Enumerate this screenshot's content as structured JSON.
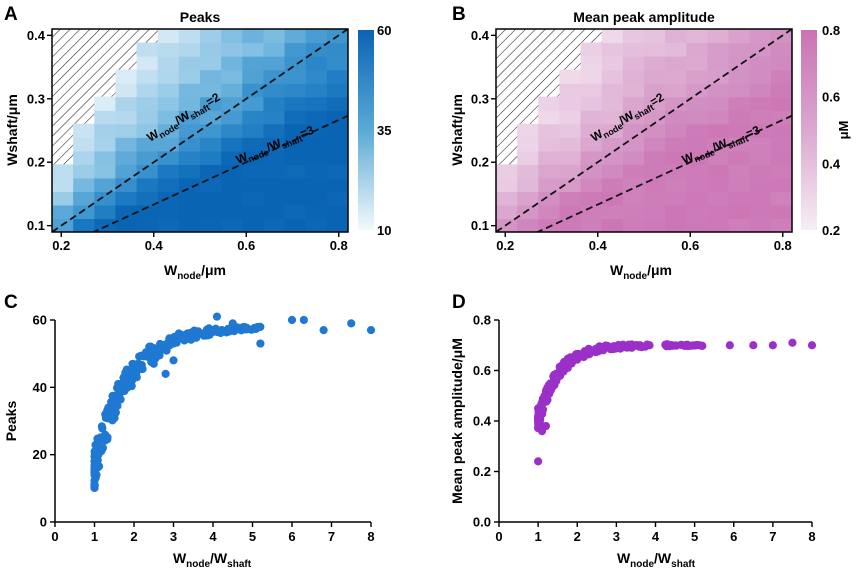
{
  "figure": {
    "panel_letters": [
      "A",
      "B",
      "C",
      "D"
    ]
  },
  "chart_data": [
    {
      "panel": "A",
      "type": "heatmap",
      "title": "Peaks",
      "xlabel_main": "W",
      "xlabel_sub": "node",
      "xlabel_tail": "/μm",
      "ylabel": "Wshaft/μm",
      "xlim": [
        0.18,
        0.82
      ],
      "ylim": [
        0.09,
        0.41
      ],
      "x_ticks": [
        0.2,
        0.4,
        0.6,
        0.8
      ],
      "x_tick_labels": [
        "0.2",
        "0.4",
        "0.6",
        "0.8"
      ],
      "y_ticks": [
        0.1,
        0.2,
        0.3,
        0.4
      ],
      "y_tick_labels": [
        "0.1",
        "0.2",
        "0.3",
        "0.4"
      ],
      "hatched_region": "upper-left (not computed where Wnode < Wshaft)",
      "colorbar": {
        "min": 10,
        "max": 60,
        "ticks": [
          10,
          35,
          60
        ],
        "tick_labels": [
          "10",
          "35",
          "60"
        ],
        "low_color": "#f3f9fc",
        "high_color": "#0a64b4",
        "unit": ""
      },
      "reference_lines": [
        {
          "ratio": 2,
          "label_main": "W",
          "label_sub1": "node",
          "label_mid": "/W",
          "label_sub2": "shaft",
          "label_tail": "=2"
        },
        {
          "ratio": 3,
          "label_main": "W",
          "label_sub1": "node",
          "label_mid": "/W",
          "label_sub2": "shaft",
          "label_tail": "=3"
        }
      ]
    },
    {
      "panel": "B",
      "type": "heatmap",
      "title": "Mean peak amplitude",
      "xlabel_main": "W",
      "xlabel_sub": "node",
      "xlabel_tail": "/μm",
      "ylabel": "Wshaft/μm",
      "xlim": [
        0.18,
        0.82
      ],
      "ylim": [
        0.09,
        0.41
      ],
      "x_ticks": [
        0.2,
        0.4,
        0.6,
        0.8
      ],
      "x_tick_labels": [
        "0.2",
        "0.4",
        "0.6",
        "0.8"
      ],
      "y_ticks": [
        0.1,
        0.2,
        0.3,
        0.4
      ],
      "y_tick_labels": [
        "0.1",
        "0.2",
        "0.3",
        "0.4"
      ],
      "hatched_region": "upper-left (not computed where Wnode < Wshaft)",
      "colorbar": {
        "min": 0.2,
        "max": 0.8,
        "ticks": [
          0.2,
          0.4,
          0.6,
          0.8
        ],
        "tick_labels": [
          "0.2",
          "0.4",
          "0.6",
          "0.8"
        ],
        "low_color": "#f7eef5",
        "high_color": "#cc72b4",
        "unit": "μM"
      },
      "reference_lines": [
        {
          "ratio": 2,
          "label_main": "W",
          "label_sub1": "node",
          "label_mid": "/W",
          "label_sub2": "shaft",
          "label_tail": "=2"
        },
        {
          "ratio": 3,
          "label_main": "W",
          "label_sub1": "node",
          "label_mid": "/W",
          "label_sub2": "shaft",
          "label_tail": "=3"
        }
      ]
    },
    {
      "panel": "C",
      "type": "scatter",
      "title": "",
      "xlabel_main": "W",
      "xlabel_sub1": "node",
      "xlabel_mid": "/W",
      "xlabel_sub2": "shaft",
      "ylabel": "Peaks",
      "xlim": [
        0,
        8
      ],
      "ylim": [
        0,
        60
      ],
      "x_ticks": [
        0,
        1,
        2,
        3,
        4,
        5,
        6,
        7,
        8
      ],
      "x_tick_labels": [
        "0",
        "1",
        "2",
        "3",
        "4",
        "5",
        "6",
        "7",
        "8"
      ],
      "y_ticks": [
        0,
        20,
        40,
        60
      ],
      "y_tick_labels": [
        "0",
        "20",
        "40",
        "60"
      ],
      "color": "#1f78d1",
      "model": {
        "ymax": 58,
        "ymin": 16,
        "k": 1.15,
        "noise": 6
      },
      "outliers": [
        [
          1.0,
          16
        ],
        [
          1.05,
          17
        ],
        [
          1.1,
          20
        ],
        [
          2.8,
          44
        ],
        [
          2.5,
          47
        ],
        [
          3.0,
          48
        ],
        [
          4.1,
          61
        ],
        [
          5.2,
          53
        ],
        [
          6.0,
          60
        ],
        [
          6.3,
          60
        ],
        [
          7.5,
          59
        ],
        [
          8.0,
          57
        ],
        [
          6.8,
          57
        ],
        [
          4.5,
          59
        ]
      ]
    },
    {
      "panel": "D",
      "type": "scatter",
      "title": "",
      "xlabel_main": "W",
      "xlabel_sub1": "node",
      "xlabel_mid": "/W",
      "xlabel_sub2": "shaft",
      "ylabel": "Mean peak amplitude/μM",
      "xlim": [
        0,
        8
      ],
      "ylim": [
        0,
        0.8
      ],
      "x_ticks": [
        0,
        1,
        2,
        3,
        4,
        5,
        6,
        7,
        8
      ],
      "x_tick_labels": [
        "0",
        "1",
        "2",
        "3",
        "4",
        "5",
        "6",
        "7",
        "8"
      ],
      "y_ticks": [
        0,
        0.2,
        0.4,
        0.6,
        0.8
      ],
      "y_tick_labels": [
        "0.0",
        "0.2",
        "0.4",
        "0.6",
        "0.8"
      ],
      "color": "#9b30c8",
      "model": {
        "ymax": 0.7,
        "ymin": 0.4,
        "k": 1.9,
        "noise": 0.03
      },
      "outliers": [
        [
          1.0,
          0.24
        ],
        [
          1.05,
          0.37
        ],
        [
          1.1,
          0.36
        ],
        [
          1.2,
          0.38
        ],
        [
          1.0,
          0.45
        ],
        [
          7.5,
          0.71
        ],
        [
          7.0,
          0.7
        ],
        [
          8.0,
          0.7
        ],
        [
          6.5,
          0.7
        ],
        [
          5.9,
          0.7
        ]
      ]
    }
  ]
}
